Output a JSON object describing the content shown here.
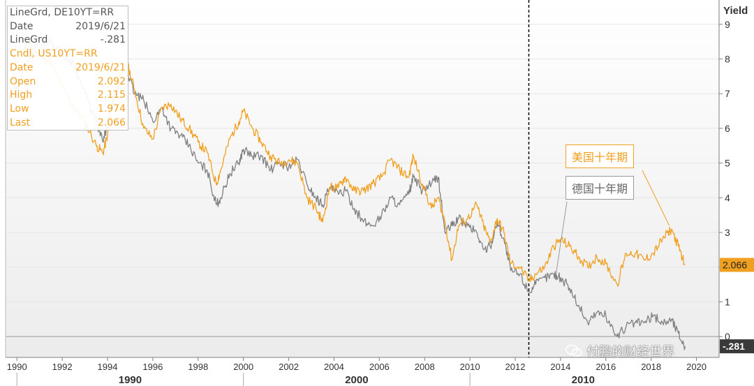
{
  "info_panel": {
    "de": {
      "line1": "LineGrd, DE10YT=RR",
      "date_label": "Date",
      "date_value": "2019/6/21",
      "series_label": "LineGrd",
      "series_value": "-.281"
    },
    "us": {
      "line1": "Cndl, US10YT=RR",
      "date_label": "Date",
      "date_value": "2019/6/21",
      "rows": [
        {
          "label": "Open",
          "value": "2.092"
        },
        {
          "label": "High",
          "value": "2.115"
        },
        {
          "label": "Low",
          "value": "1.974"
        },
        {
          "label": "Last",
          "value": "2.066"
        }
      ]
    }
  },
  "annotations": {
    "us_label": "美国十年期",
    "de_label": "德国十年期"
  },
  "watermark": "付鹏的财经世界",
  "colors": {
    "us": "#f0a020",
    "de": "#808080",
    "grid": "#e6e6e6",
    "axis": "#7f7f7f",
    "vline": "#000000"
  },
  "chart_data": {
    "type": "line",
    "title": "",
    "ylabel": "Yield",
    "ylim": [
      -0.6,
      9.7
    ],
    "xlim": [
      1989.5,
      2021.0
    ],
    "y_ticks": [
      0,
      1,
      2,
      3,
      4,
      5,
      6,
      7,
      8,
      9
    ],
    "x_ticks": [
      1990,
      1992,
      1994,
      1996,
      1998,
      2000,
      2002,
      2004,
      2006,
      2008,
      2010,
      2012,
      2014,
      2016,
      2018,
      2020
    ],
    "x_decades": [
      "1990",
      "2000",
      "2010"
    ],
    "vertical_marker_x": 2012.6,
    "last_value_tags": {
      "us": "2.066",
      "de": "-.281"
    },
    "series": [
      {
        "key": "us",
        "name": "美国十年期",
        "x": [
          1989.6,
          1990.0,
          1990.5,
          1991.0,
          1991.5,
          1992.0,
          1992.5,
          1993.0,
          1993.5,
          1993.8,
          1994.0,
          1994.3,
          1994.6,
          1994.9,
          1995.2,
          1995.6,
          1996.0,
          1996.4,
          1996.8,
          1997.2,
          1997.6,
          1998.0,
          1998.4,
          1998.8,
          1999.0,
          1999.4,
          1999.8,
          2000.0,
          2000.4,
          2000.8,
          2001.2,
          2001.6,
          2002.0,
          2002.4,
          2002.8,
          2003.2,
          2003.5,
          2003.8,
          2004.2,
          2004.5,
          2004.9,
          2005.3,
          2005.7,
          2006.1,
          2006.5,
          2006.9,
          2007.3,
          2007.5,
          2007.9,
          2008.3,
          2008.6,
          2008.9,
          2009.2,
          2009.5,
          2009.9,
          2010.3,
          2010.6,
          2010.9,
          2011.2,
          2011.5,
          2011.8,
          2012.2,
          2012.6,
          2012.9,
          2013.3,
          2013.7,
          2014.0,
          2014.4,
          2014.8,
          2015.2,
          2015.6,
          2016.0,
          2016.5,
          2016.9,
          2017.3,
          2017.7,
          2018.1,
          2018.5,
          2018.9,
          2019.2,
          2019.5
        ],
        "values": [
          8.4,
          7.9,
          8.5,
          8.1,
          7.9,
          7.2,
          6.6,
          6.2,
          5.5,
          5.3,
          5.8,
          7.1,
          7.6,
          7.8,
          7.1,
          6.0,
          5.7,
          6.6,
          6.7,
          6.3,
          6.0,
          5.6,
          5.3,
          4.4,
          4.8,
          5.7,
          6.2,
          6.5,
          6.0,
          5.6,
          5.2,
          5.0,
          5.1,
          5.0,
          4.0,
          3.7,
          3.3,
          4.3,
          4.3,
          4.6,
          4.2,
          4.2,
          4.4,
          4.6,
          5.1,
          4.8,
          4.6,
          5.2,
          4.4,
          3.7,
          4.0,
          3.3,
          2.2,
          3.2,
          3.4,
          3.8,
          3.2,
          2.7,
          3.4,
          3.0,
          2.1,
          2.0,
          1.6,
          1.8,
          2.0,
          2.6,
          2.8,
          2.6,
          2.3,
          2.0,
          2.3,
          2.1,
          1.5,
          2.4,
          2.4,
          2.2,
          2.4,
          2.8,
          3.1,
          2.6,
          2.066
        ]
      },
      {
        "key": "de",
        "name": "德国十年期",
        "x": [
          1989.6,
          1990.0,
          1990.5,
          1991.0,
          1991.5,
          1992.0,
          1992.5,
          1993.0,
          1993.5,
          1993.8,
          1994.0,
          1994.3,
          1994.6,
          1994.9,
          1995.2,
          1995.6,
          1996.0,
          1996.4,
          1996.8,
          1997.2,
          1997.6,
          1998.0,
          1998.4,
          1998.8,
          1999.0,
          1999.4,
          1999.8,
          2000.0,
          2000.4,
          2000.8,
          2001.2,
          2001.6,
          2002.0,
          2002.4,
          2002.8,
          2003.2,
          2003.5,
          2003.8,
          2004.2,
          2004.5,
          2004.9,
          2005.3,
          2005.7,
          2006.1,
          2006.5,
          2006.9,
          2007.3,
          2007.5,
          2007.9,
          2008.3,
          2008.6,
          2008.9,
          2009.2,
          2009.5,
          2009.9,
          2010.3,
          2010.6,
          2010.9,
          2011.2,
          2011.5,
          2011.8,
          2012.2,
          2012.6,
          2012.9,
          2013.3,
          2013.7,
          2014.0,
          2014.4,
          2014.8,
          2015.2,
          2015.6,
          2016.0,
          2016.5,
          2016.9,
          2017.3,
          2017.7,
          2018.1,
          2018.5,
          2018.9,
          2019.2,
          2019.5
        ],
        "values": [
          6.8,
          7.2,
          8.0,
          8.5,
          8.5,
          8.1,
          7.9,
          7.0,
          6.2,
          5.6,
          6.1,
          6.9,
          7.3,
          7.6,
          7.0,
          6.8,
          6.2,
          6.6,
          6.0,
          5.8,
          5.5,
          5.0,
          4.8,
          3.8,
          4.0,
          4.7,
          5.0,
          5.4,
          5.2,
          5.2,
          4.8,
          5.0,
          4.9,
          5.1,
          4.4,
          4.0,
          3.8,
          4.3,
          4.1,
          4.2,
          3.7,
          3.3,
          3.2,
          3.5,
          4.0,
          3.8,
          4.1,
          4.6,
          4.2,
          4.4,
          4.6,
          3.0,
          3.2,
          3.4,
          3.2,
          3.0,
          2.5,
          2.6,
          3.3,
          2.8,
          1.9,
          1.8,
          1.3,
          1.5,
          1.7,
          1.8,
          1.7,
          1.4,
          0.9,
          0.4,
          0.7,
          0.6,
          0.0,
          0.3,
          0.4,
          0.4,
          0.6,
          0.4,
          0.5,
          0.1,
          -0.281
        ]
      }
    ]
  }
}
